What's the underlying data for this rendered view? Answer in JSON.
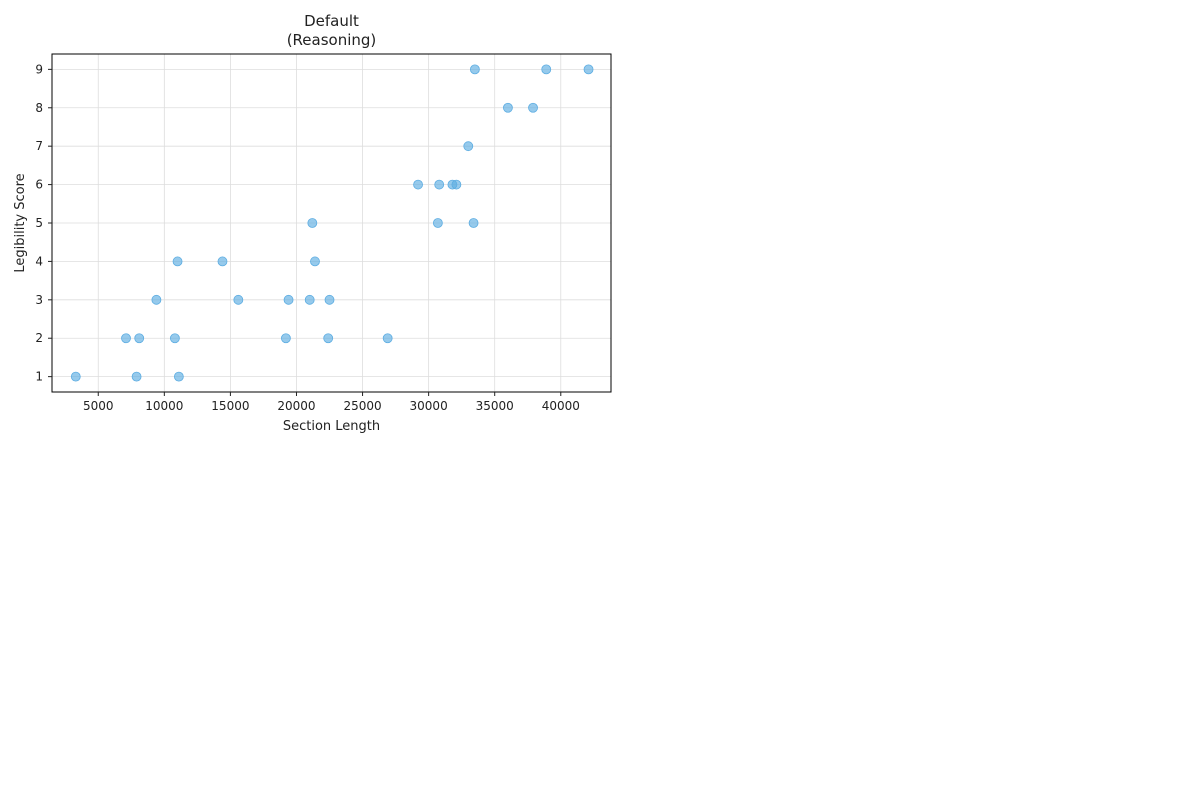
{
  "chart_data": {
    "type": "scatter",
    "title": "Default\n(Reasoning)",
    "xlabel": "Section Length",
    "ylabel": "Legibility Score",
    "xlim": [
      1500,
      43800
    ],
    "ylim": [
      0.6,
      9.4
    ],
    "xticks": [
      5000,
      10000,
      15000,
      20000,
      25000,
      30000,
      35000,
      40000
    ],
    "yticks": [
      1,
      2,
      3,
      4,
      5,
      6,
      7,
      8,
      9
    ],
    "grid": true,
    "marker_color": "#5dade2",
    "points": [
      {
        "x": 3300,
        "y": 1
      },
      {
        "x": 7900,
        "y": 1
      },
      {
        "x": 11100,
        "y": 1
      },
      {
        "x": 7100,
        "y": 2
      },
      {
        "x": 8100,
        "y": 2
      },
      {
        "x": 10800,
        "y": 2
      },
      {
        "x": 19200,
        "y": 2
      },
      {
        "x": 22400,
        "y": 2
      },
      {
        "x": 26900,
        "y": 2
      },
      {
        "x": 9400,
        "y": 3
      },
      {
        "x": 15600,
        "y": 3
      },
      {
        "x": 19400,
        "y": 3
      },
      {
        "x": 21000,
        "y": 3
      },
      {
        "x": 22500,
        "y": 3
      },
      {
        "x": 11000,
        "y": 4
      },
      {
        "x": 14400,
        "y": 4
      },
      {
        "x": 21400,
        "y": 4
      },
      {
        "x": 21200,
        "y": 5
      },
      {
        "x": 30700,
        "y": 5
      },
      {
        "x": 33400,
        "y": 5
      },
      {
        "x": 29200,
        "y": 6
      },
      {
        "x": 30800,
        "y": 6
      },
      {
        "x": 31800,
        "y": 6
      },
      {
        "x": 32100,
        "y": 6
      },
      {
        "x": 33000,
        "y": 7
      },
      {
        "x": 36000,
        "y": 8
      },
      {
        "x": 37900,
        "y": 8
      },
      {
        "x": 33500,
        "y": 9
      },
      {
        "x": 38900,
        "y": 9
      },
      {
        "x": 42100,
        "y": 9
      }
    ]
  }
}
